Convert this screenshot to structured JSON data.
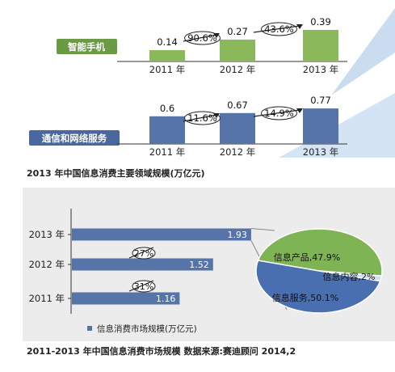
{
  "colors": {
    "green_bar": "#8cb85c",
    "blue_bar": "#5674a8",
    "green_label_bg": "#6b9a45",
    "blue_label_bg": "#4b67a0",
    "bottom_panel_bg": "#ececec",
    "pie_green": "#7fb455",
    "pie_blue": "#4a6fb0",
    "axis": "#333333"
  },
  "chart_data": [
    {
      "type": "bar",
      "label": "智能手机",
      "categories": [
        "2011 年",
        "2012 年",
        "2013 年"
      ],
      "values": [
        0.14,
        0.27,
        0.39
      ],
      "growth_labels": [
        "90.6%",
        "43.6%"
      ]
    },
    {
      "type": "bar",
      "label": "通信和网络服务",
      "categories": [
        "2011 年",
        "2012 年",
        "2013 年"
      ],
      "values": [
        0.6,
        0.67,
        0.77
      ],
      "growth_labels": [
        "11.6%",
        "14.9%"
      ]
    },
    {
      "type": "bar",
      "orientation": "horizontal",
      "categories": [
        "2013 年",
        "2012 年",
        "2011 年"
      ],
      "values": [
        1.93,
        1.52,
        1.16
      ],
      "growth_labels": [
        "27%",
        "31%"
      ],
      "legend": "信息消费市场规模(万亿元)"
    },
    {
      "type": "pie",
      "labels": [
        "信息产品,47.9%",
        "信息内容,2%",
        "信息服务,50.1%"
      ],
      "values": [
        47.9,
        2.0,
        50.1
      ]
    }
  ],
  "captions": {
    "top": "2013 年中国信息消费主要领域规模(万亿元)",
    "bottom": "2011-2013 年中国信息消费市场规模  数据来源:赛迪顾问 2014,2"
  }
}
